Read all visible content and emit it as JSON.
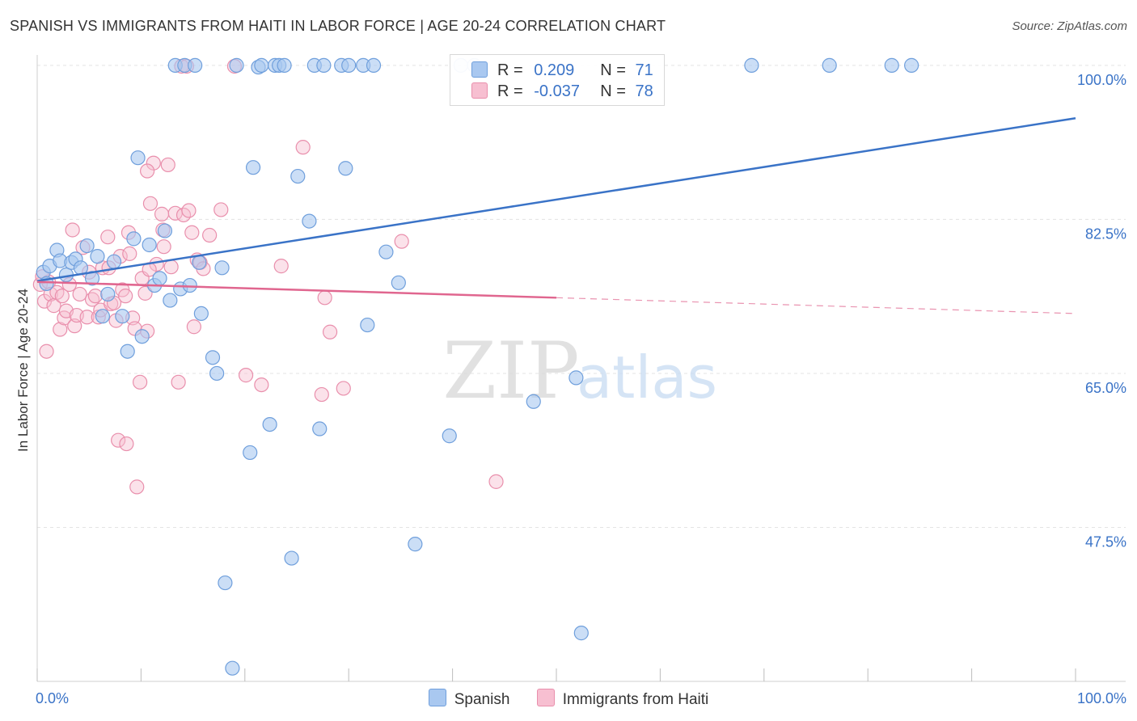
{
  "title": "SPANISH VS IMMIGRANTS FROM HAITI IN LABOR FORCE | AGE 20-24 CORRELATION CHART",
  "source": "Source: ZipAtlas.com",
  "watermark": {
    "zip": "ZIP",
    "atlas": "atlas"
  },
  "legend": {
    "spanish": {
      "r_label": "R =",
      "r_value": "0.209",
      "n_label": "N =",
      "n_value": "71"
    },
    "haiti": {
      "r_label": "R =",
      "r_value": "-0.037",
      "n_label": "N =",
      "n_value": "78"
    }
  },
  "bottom_legend": {
    "spanish": "Spanish",
    "haiti": "Immigrants from Haiti"
  },
  "colors": {
    "spanish_fill": "#a9c8f0",
    "spanish_stroke": "#6f9fdc",
    "spanish_line": "#3a73c7",
    "haiti_fill": "#f7bfd1",
    "haiti_stroke": "#e98fac",
    "haiti_line": "#e0668f",
    "tick_label": "#3a73c7",
    "grid": "#e3e3e3"
  },
  "chart_data": {
    "type": "scatter",
    "title": "SPANISH VS IMMIGRANTS FROM HAITI IN LABOR FORCE | AGE 20-24 CORRELATION CHART",
    "xlabel": "",
    "ylabel": "In Labor Force | Age 20-24",
    "xlim": [
      0,
      100
    ],
    "ylim": [
      30,
      101
    ],
    "x_tick_labels": [
      "0.0%",
      "100.0%"
    ],
    "y_ticks": [
      {
        "value": 100,
        "label": "100.0%"
      },
      {
        "value": 82.5,
        "label": "82.5%"
      },
      {
        "value": 65,
        "label": "65.0%"
      },
      {
        "value": 47.5,
        "label": "47.5%"
      }
    ],
    "grid": true,
    "series": [
      {
        "name": "Spanish",
        "trend": {
          "x0": 0,
          "y0": 75.5,
          "x1": 100,
          "y1": 94.0
        },
        "points": [
          [
            0.6,
            76.5
          ],
          [
            0.9,
            75.2
          ],
          [
            1.2,
            77.2
          ],
          [
            1.9,
            79.0
          ],
          [
            2.2,
            77.8
          ],
          [
            2.8,
            76.2
          ],
          [
            3.3,
            77.6
          ],
          [
            3.7,
            78.0
          ],
          [
            4.2,
            77.0
          ],
          [
            4.8,
            79.5
          ],
          [
            5.3,
            75.8
          ],
          [
            5.8,
            78.3
          ],
          [
            6.3,
            71.5
          ],
          [
            6.8,
            74.0
          ],
          [
            7.4,
            77.7
          ],
          [
            8.2,
            71.5
          ],
          [
            8.7,
            67.5
          ],
          [
            9.3,
            80.3
          ],
          [
            9.7,
            89.5
          ],
          [
            10.1,
            69.2
          ],
          [
            10.8,
            79.6
          ],
          [
            11.3,
            75.0
          ],
          [
            11.8,
            75.8
          ],
          [
            12.3,
            81.2
          ],
          [
            12.8,
            73.3
          ],
          [
            13.3,
            100.0
          ],
          [
            13.8,
            74.6
          ],
          [
            14.2,
            100.0
          ],
          [
            14.7,
            75.0
          ],
          [
            15.2,
            100.0
          ],
          [
            15.6,
            77.6
          ],
          [
            15.8,
            71.8
          ],
          [
            16.9,
            66.8
          ],
          [
            17.3,
            65.0
          ],
          [
            18.1,
            41.2
          ],
          [
            18.8,
            31.5
          ],
          [
            17.8,
            77.0
          ],
          [
            19.2,
            100.0
          ],
          [
            20.5,
            56.0
          ],
          [
            20.8,
            88.4
          ],
          [
            21.3,
            99.8
          ],
          [
            21.6,
            100.0
          ],
          [
            22.4,
            59.2
          ],
          [
            22.9,
            100.0
          ],
          [
            23.3,
            100.0
          ],
          [
            23.8,
            100.0
          ],
          [
            24.5,
            44.0
          ],
          [
            25.1,
            87.4
          ],
          [
            26.2,
            82.3
          ],
          [
            26.7,
            100.0
          ],
          [
            27.2,
            58.7
          ],
          [
            27.6,
            100.0
          ],
          [
            29.3,
            100.0
          ],
          [
            29.7,
            88.3
          ],
          [
            30.0,
            100.0
          ],
          [
            31.4,
            100.0
          ],
          [
            31.8,
            70.5
          ],
          [
            32.4,
            100.0
          ],
          [
            33.6,
            78.8
          ],
          [
            34.8,
            75.3
          ],
          [
            36.4,
            45.6
          ],
          [
            39.7,
            57.9
          ],
          [
            40.8,
            100.0
          ],
          [
            42.1,
            100.0
          ],
          [
            47.8,
            61.8
          ],
          [
            51.9,
            64.5
          ],
          [
            52.4,
            35.5
          ],
          [
            68.8,
            100.0
          ],
          [
            76.3,
            100.0
          ],
          [
            82.3,
            100.0
          ],
          [
            84.2,
            100.0
          ]
        ]
      },
      {
        "name": "Immigrants from Haiti",
        "trend": {
          "x0": 0,
          "y0": 75.4,
          "x1": 50,
          "y1": 73.6
        },
        "trend_dashed": {
          "x0": 50,
          "y0": 73.6,
          "x1": 100,
          "y1": 71.8
        },
        "points": [
          [
            0.3,
            75.1
          ],
          [
            0.5,
            76.0
          ],
          [
            0.7,
            73.2
          ],
          [
            0.9,
            67.5
          ],
          [
            1.1,
            75.4
          ],
          [
            1.3,
            74.0
          ],
          [
            1.6,
            72.7
          ],
          [
            1.9,
            74.2
          ],
          [
            2.2,
            70.0
          ],
          [
            2.4,
            73.8
          ],
          [
            2.6,
            71.3
          ],
          [
            2.8,
            72.1
          ],
          [
            3.1,
            75.1
          ],
          [
            3.4,
            81.3
          ],
          [
            3.6,
            70.4
          ],
          [
            3.8,
            71.6
          ],
          [
            4.1,
            74.0
          ],
          [
            4.4,
            79.3
          ],
          [
            4.8,
            71.4
          ],
          [
            5.0,
            76.5
          ],
          [
            5.3,
            73.4
          ],
          [
            5.6,
            73.8
          ],
          [
            5.9,
            71.4
          ],
          [
            6.1,
            72.2
          ],
          [
            6.3,
            77.0
          ],
          [
            6.8,
            80.5
          ],
          [
            7.1,
            72.9
          ],
          [
            7.4,
            73.0
          ],
          [
            7.6,
            71.0
          ],
          [
            7.8,
            57.4
          ],
          [
            8.0,
            78.3
          ],
          [
            8.2,
            74.5
          ],
          [
            8.5,
            73.8
          ],
          [
            8.8,
            81.0
          ],
          [
            8.6,
            57.0
          ],
          [
            8.9,
            78.6
          ],
          [
            9.2,
            71.3
          ],
          [
            9.4,
            70.1
          ],
          [
            9.6,
            52.1
          ],
          [
            9.9,
            64.0
          ],
          [
            10.1,
            75.8
          ],
          [
            10.4,
            74.1
          ],
          [
            10.6,
            69.8
          ],
          [
            10.9,
            84.3
          ],
          [
            11.2,
            88.9
          ],
          [
            12.0,
            83.1
          ],
          [
            11.5,
            77.4
          ],
          [
            12.2,
            79.4
          ],
          [
            12.6,
            88.7
          ],
          [
            12.9,
            77.1
          ],
          [
            13.3,
            83.2
          ],
          [
            13.6,
            64.0
          ],
          [
            13.9,
            99.9
          ],
          [
            14.1,
            83.0
          ],
          [
            14.4,
            99.9
          ],
          [
            14.6,
            83.5
          ],
          [
            14.9,
            81.0
          ],
          [
            15.1,
            70.3
          ],
          [
            15.4,
            77.9
          ],
          [
            15.7,
            77.6
          ],
          [
            16.0,
            76.9
          ],
          [
            16.6,
            80.7
          ],
          [
            17.7,
            83.6
          ],
          [
            19.0,
            99.9
          ],
          [
            20.1,
            64.8
          ],
          [
            21.6,
            63.7
          ],
          [
            23.5,
            77.2
          ],
          [
            25.6,
            90.7
          ],
          [
            27.4,
            62.6
          ],
          [
            27.7,
            73.6
          ],
          [
            28.2,
            69.7
          ],
          [
            29.5,
            63.3
          ],
          [
            35.1,
            80.0
          ],
          [
            44.2,
            52.7
          ],
          [
            10.6,
            88.0
          ],
          [
            12.1,
            81.3
          ],
          [
            10.8,
            76.8
          ],
          [
            6.9,
            77.0
          ]
        ]
      }
    ]
  }
}
